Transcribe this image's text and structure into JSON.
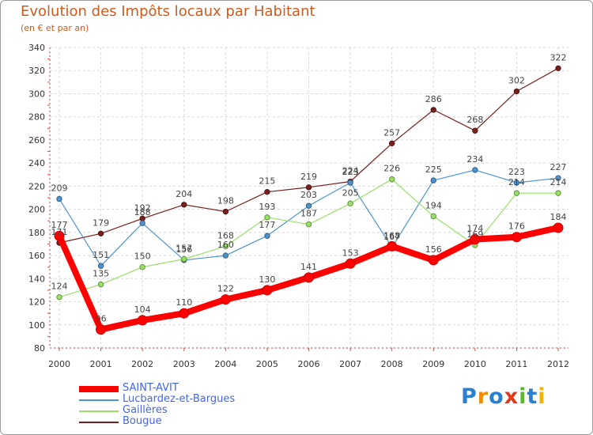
{
  "header": {
    "title": "Evolution des Impôts locaux par Habitant",
    "subtitle": "(en € et par an)"
  },
  "logo": {
    "text": "Proxiti",
    "colors": [
      "#2a7fd0",
      "#f28c00",
      "#2a7fd0",
      "#e2381c",
      "#5ab82d",
      "#2a7fd0",
      "#f5b400"
    ]
  },
  "chart_data": {
    "type": "line",
    "title": "Evolution des Impôts locaux par Habitant",
    "subtitle": "(en € et par an)",
    "xlabel": "",
    "ylabel": "",
    "ylim": [
      80,
      340
    ],
    "yticks": [
      80,
      100,
      120,
      140,
      160,
      180,
      200,
      220,
      240,
      260,
      280,
      300,
      320,
      340
    ],
    "categories": [
      "2000",
      "2001",
      "2002",
      "2003",
      "2004",
      "2005",
      "2006",
      "2007",
      "2008",
      "2009",
      "2010",
      "2011",
      "2012"
    ],
    "grid": true,
    "series": [
      {
        "name": "Bougue",
        "color": "#7a1e1e",
        "values": [
          171,
          179,
          192,
          204,
          198,
          215,
          219,
          224,
          257,
          286,
          268,
          302,
          322
        ]
      },
      {
        "name": "Lucbardez-et-Bargues",
        "color": "#4d94cf",
        "values": [
          209,
          151,
          188,
          156,
          160,
          177,
          203,
          223,
          167,
          225,
          234,
          223,
          227
        ]
      },
      {
        "name": "Gaillères",
        "color": "#99e066",
        "values": [
          124,
          135,
          150,
          157,
          168,
          193,
          187,
          205,
          226,
          194,
          169,
          214,
          214
        ]
      },
      {
        "name": "SAINT-AVIT",
        "color": "#ff0000",
        "values": [
          177,
          96,
          104,
          110,
          122,
          130,
          141,
          153,
          168,
          156,
          174,
          176,
          184
        ]
      }
    ],
    "legend": [
      {
        "name": "SAINT-AVIT",
        "color": "#ff0000"
      },
      {
        "name": "Lucbardez-et-Bargues",
        "color": "#4d94cf"
      },
      {
        "name": "Gaillères",
        "color": "#99e066"
      },
      {
        "name": "Bougue",
        "color": "#7a1e1e"
      }
    ]
  }
}
